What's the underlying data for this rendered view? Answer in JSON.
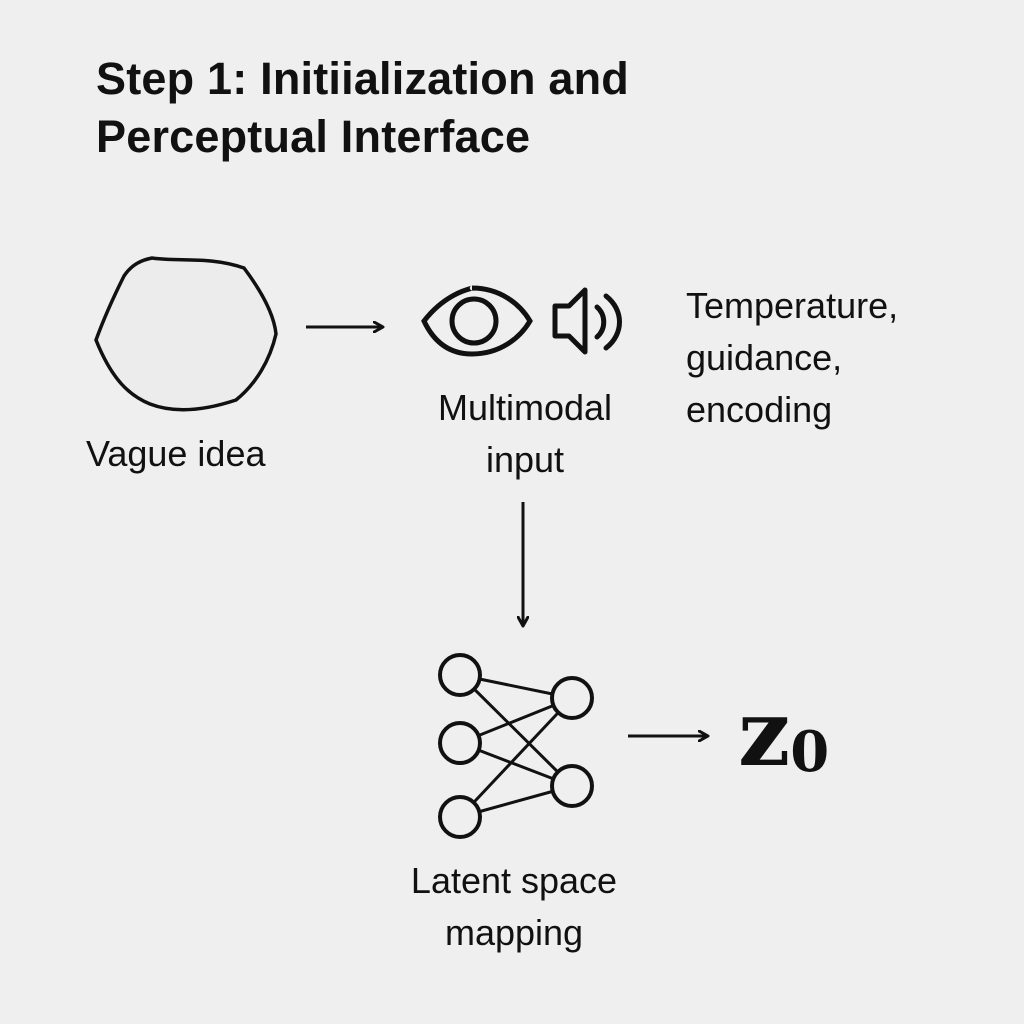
{
  "title": {
    "line1": "Step 1: Initiialization and",
    "line2": "Perceptual Interface"
  },
  "nodes": {
    "vague_idea": {
      "label": "Vague idea"
    },
    "multimodal": {
      "label_line1": "Multimodal",
      "label_line2": "input"
    },
    "latent": {
      "label_line1": "Latent space",
      "label_line2": "mapping"
    }
  },
  "parameters": {
    "line1": "Temperature,",
    "line2": "guidance,",
    "line3": "encoding"
  },
  "output": {
    "symbol": "z",
    "subscript": "0"
  },
  "icons": [
    "blob-shape-icon",
    "eye-icon",
    "speaker-icon",
    "neural-network-icon",
    "arrow-right-icon",
    "arrow-down-icon"
  ]
}
